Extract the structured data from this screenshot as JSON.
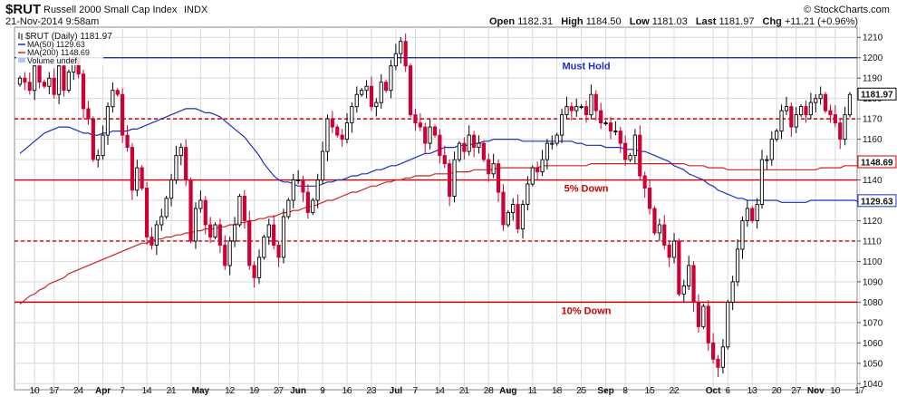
{
  "header": {
    "symbol": "$RUT",
    "name": "Russell 2000 Small Cap Index",
    "exchange": "INDX",
    "date": "21-Nov-2014 9:58am",
    "watermark": "© StockCharts.com",
    "open_label": "Open",
    "open": "1182.31",
    "high_label": "High",
    "high": "1184.50",
    "low_label": "Low",
    "low": "1181.03",
    "last_label": "Last",
    "last": "1181.97",
    "chg_label": "Chg",
    "chg": "+11.21 (+0.96%)"
  },
  "legend": {
    "price": "$RUT (Daily) 1181.97",
    "ma50": "MA(50) 1129.63",
    "ma200": "MA(200) 1148.69",
    "volume": "Volume undef"
  },
  "chart_data": {
    "type": "candlestick",
    "ylim": [
      1037,
      1215
    ],
    "yticks": [
      1040,
      1050,
      1060,
      1070,
      1080,
      1090,
      1100,
      1110,
      1120,
      1130,
      1140,
      1150,
      1160,
      1170,
      1180,
      1190,
      1200,
      1210
    ],
    "x_ticks": [
      {
        "i": 3,
        "label": "10"
      },
      {
        "i": 7,
        "label": "17"
      },
      {
        "i": 12,
        "label": "24"
      },
      {
        "i": 17,
        "label": "Apr"
      },
      {
        "i": 21,
        "label": "7"
      },
      {
        "i": 26,
        "label": "14"
      },
      {
        "i": 31,
        "label": "21"
      },
      {
        "i": 37,
        "label": "May"
      },
      {
        "i": 43,
        "label": "12"
      },
      {
        "i": 48,
        "label": "19"
      },
      {
        "i": 53,
        "label": "27"
      },
      {
        "i": 57,
        "label": "Jun"
      },
      {
        "i": 62,
        "label": "9"
      },
      {
        "i": 67,
        "label": "16"
      },
      {
        "i": 72,
        "label": "23"
      },
      {
        "i": 77,
        "label": "Jul"
      },
      {
        "i": 81,
        "label": "7"
      },
      {
        "i": 86,
        "label": "14"
      },
      {
        "i": 91,
        "label": "21"
      },
      {
        "i": 96,
        "label": "28"
      },
      {
        "i": 100,
        "label": "Aug"
      },
      {
        "i": 105,
        "label": "11"
      },
      {
        "i": 110,
        "label": "18"
      },
      {
        "i": 115,
        "label": "25"
      },
      {
        "i": 120,
        "label": "Sep"
      },
      {
        "i": 124,
        "label": "8"
      },
      {
        "i": 129,
        "label": "15"
      },
      {
        "i": 134,
        "label": "22"
      },
      {
        "i": 142,
        "label": "Oct"
      },
      {
        "i": 145,
        "label": "6"
      },
      {
        "i": 150,
        "label": "13"
      },
      {
        "i": 155,
        "label": "20"
      },
      {
        "i": 159,
        "label": "27"
      },
      {
        "i": 163,
        "label": "Nov"
      },
      {
        "i": 167,
        "label": "10"
      },
      {
        "i": 172,
        "label": "17"
      }
    ],
    "closes": [
      1190,
      1188,
      1184,
      1196,
      1188,
      1186,
      1190,
      1182,
      1196,
      1184,
      1193,
      1200,
      1192,
      1175,
      1170,
      1150,
      1152,
      1162,
      1176,
      1184,
      1182,
      1162,
      1156,
      1135,
      1146,
      1136,
      1112,
      1108,
      1118,
      1122,
      1131,
      1140,
      1152,
      1156,
      1140,
      1110,
      1126,
      1130,
      1118,
      1112,
      1118,
      1108,
      1098,
      1110,
      1118,
      1132,
      1120,
      1098,
      1092,
      1102,
      1112,
      1118,
      1108,
      1102,
      1122,
      1130,
      1140,
      1140,
      1134,
      1124,
      1130,
      1140,
      1154,
      1170,
      1166,
      1162,
      1160,
      1168,
      1176,
      1182,
      1184,
      1186,
      1176,
      1178,
      1188,
      1184,
      1196,
      1202,
      1208,
      1196,
      1172,
      1168,
      1166,
      1158,
      1166,
      1162,
      1152,
      1148,
      1132,
      1150,
      1158,
      1154,
      1162,
      1156,
      1158,
      1150,
      1143,
      1148,
      1134,
      1118,
      1124,
      1128,
      1116,
      1128,
      1138,
      1146,
      1144,
      1150,
      1158,
      1158,
      1162,
      1172,
      1176,
      1174,
      1176,
      1176,
      1172,
      1182,
      1174,
      1168,
      1168,
      1164,
      1164,
      1158,
      1150,
      1152,
      1162,
      1142,
      1136,
      1126,
      1114,
      1118,
      1108,
      1102,
      1110,
      1084,
      1088,
      1098,
      1080,
      1068,
      1078,
      1060,
      1052,
      1048,
      1058,
      1080,
      1090,
      1106,
      1120,
      1126,
      1120,
      1128,
      1150,
      1150,
      1160,
      1164,
      1174,
      1176,
      1166,
      1172,
      1176,
      1172,
      1178,
      1180,
      1182,
      1174,
      1172,
      1168,
      1160,
      1172,
      1182
    ],
    "ma50": [
      1153,
      1155,
      1157,
      1159,
      1161,
      1163,
      1164,
      1165,
      1166,
      1166,
      1166,
      1165,
      1164,
      1163,
      1163,
      1162,
      1162,
      1163,
      1163,
      1164,
      1164,
      1164,
      1164,
      1165,
      1165,
      1166,
      1167,
      1168,
      1169,
      1170,
      1171,
      1172,
      1173,
      1174,
      1175,
      1175,
      1175,
      1174,
      1173,
      1173,
      1172,
      1171,
      1169,
      1167,
      1165,
      1163,
      1161,
      1158,
      1155,
      1152,
      1148,
      1145,
      1142,
      1140,
      1139,
      1139,
      1138,
      1137,
      1137,
      1137,
      1137,
      1137,
      1138,
      1139,
      1139,
      1140,
      1140,
      1141,
      1142,
      1142,
      1143,
      1143,
      1144,
      1145,
      1145,
      1146,
      1147,
      1147,
      1148,
      1149,
      1150,
      1151,
      1152,
      1153,
      1153,
      1154,
      1155,
      1156,
      1156,
      1156,
      1157,
      1157,
      1157,
      1158,
      1158,
      1159,
      1159,
      1160,
      1160,
      1160,
      1160,
      1160,
      1160,
      1159,
      1159,
      1159,
      1159,
      1159,
      1159,
      1159,
      1159,
      1159,
      1159,
      1159,
      1158,
      1158,
      1157,
      1157,
      1157,
      1157,
      1156,
      1156,
      1156,
      1156,
      1155,
      1155,
      1155,
      1154,
      1154,
      1153,
      1152,
      1151,
      1150,
      1149,
      1147,
      1146,
      1145,
      1143,
      1142,
      1141,
      1140,
      1138,
      1137,
      1135,
      1134,
      1133,
      1132,
      1131,
      1131,
      1130,
      1130,
      1130,
      1130,
      1130,
      1130,
      1130,
      1129,
      1129,
      1129,
      1129,
      1129,
      1129,
      1130,
      1130,
      1130,
      1130,
      1130,
      1130,
      1130,
      1130,
      1130,
      1130,
      1129,
      1129,
      1129,
      1129,
      1129,
      1129,
      1129,
      1129
    ],
    "ma200": [
      1079,
      1081,
      1083,
      1084,
      1086,
      1087,
      1089,
      1090,
      1091,
      1092,
      1094,
      1095,
      1096,
      1097,
      1098,
      1099,
      1100,
      1101,
      1102,
      1103,
      1104,
      1105,
      1106,
      1107,
      1108,
      1109,
      1109,
      1110,
      1111,
      1111,
      1112,
      1112,
      1113,
      1113,
      1114,
      1114,
      1115,
      1115,
      1116,
      1116,
      1116,
      1117,
      1117,
      1118,
      1118,
      1119,
      1119,
      1120,
      1120,
      1121,
      1121,
      1122,
      1122,
      1123,
      1124,
      1124,
      1125,
      1125,
      1126,
      1127,
      1127,
      1128,
      1129,
      1130,
      1130,
      1131,
      1132,
      1133,
      1134,
      1134,
      1135,
      1136,
      1137,
      1137,
      1138,
      1139,
      1139,
      1140,
      1140,
      1141,
      1141,
      1142,
      1142,
      1142,
      1142,
      1143,
      1143,
      1143,
      1143,
      1144,
      1144,
      1144,
      1144,
      1145,
      1145,
      1145,
      1145,
      1145,
      1146,
      1146,
      1146,
      1146,
      1146,
      1146,
      1146,
      1146,
      1146,
      1147,
      1147,
      1147,
      1147,
      1147,
      1147,
      1147,
      1147,
      1147,
      1147,
      1148,
      1148,
      1148,
      1148,
      1148,
      1148,
      1148,
      1148,
      1148,
      1148,
      1148,
      1148,
      1148,
      1148,
      1148,
      1148,
      1148,
      1148,
      1148,
      1148,
      1147,
      1147,
      1147,
      1147,
      1146,
      1146,
      1146,
      1146,
      1145,
      1145,
      1145,
      1145,
      1145,
      1145,
      1145,
      1145,
      1145,
      1145,
      1145,
      1145,
      1145,
      1145,
      1145,
      1145,
      1145,
      1145,
      1145,
      1146,
      1146,
      1146,
      1146,
      1146,
      1147,
      1147,
      1147,
      1147,
      1147,
      1148,
      1148,
      1148,
      1148,
      1149,
      1149
    ]
  },
  "levels": [
    {
      "value": 1200,
      "style": "solid",
      "color": "#1b2fbf",
      "label": "Must Hold",
      "label_color": "#1b2fbf",
      "label_i": 116
    },
    {
      "value": 1170,
      "style": "dashed",
      "color": "#cc0000"
    },
    {
      "value": 1140,
      "style": "solid",
      "color": "#cc0000",
      "label": "5% Down",
      "label_color": "#cc0000",
      "label_i": 116
    },
    {
      "value": 1110,
      "style": "dashed",
      "color": "#cc0000"
    },
    {
      "value": 1080,
      "style": "solid",
      "color": "#cc0000",
      "label": "10% Down",
      "label_color": "#cc0000",
      "label_i": 116
    }
  ],
  "price_tags": [
    {
      "value": "1181.97",
      "y": 1181.97,
      "border": "#000000",
      "text": "#000000"
    },
    {
      "value": "1148.69",
      "y": 1148.69,
      "border": "#cc0000",
      "text": "#000000"
    },
    {
      "value": "1129.63",
      "y": 1129.63,
      "border": "#1b2fbf",
      "text": "#000000"
    }
  ],
  "colors": {
    "up": "#000000",
    "down": "#cc0033",
    "ma50": "#1b2fbf",
    "ma200": "#cc2222",
    "grid": "#d9d9d9"
  }
}
